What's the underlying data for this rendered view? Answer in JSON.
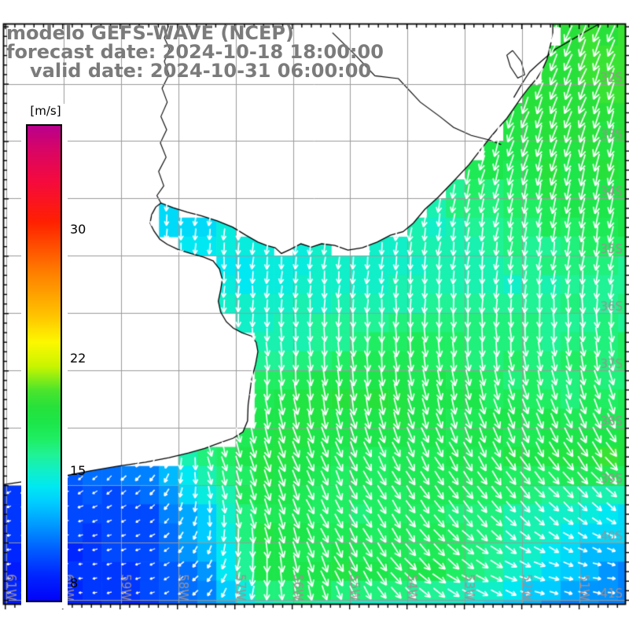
{
  "title": {
    "model": "modelo GEFS-WAVE (NCEP)",
    "forecast_date": "forecast date: 2024-10-18 18:00:00",
    "valid_date": "valid date: 2024-10-31 06:00:00",
    "color": "#7b7b7b"
  },
  "colorbar": {
    "unit": "[m/s]",
    "min": 0.4,
    "max": 30,
    "ticks": [
      {
        "label": "30",
        "value": 30
      },
      {
        "label": "22",
        "value": 22
      },
      {
        "label": "15",
        "value": 15
      },
      {
        "label": "8",
        "value": 8
      }
    ],
    "stops": [
      [
        0.4,
        "#0202f8"
      ],
      [
        2,
        "#0026ff"
      ],
      [
        3.5,
        "#005aff"
      ],
      [
        5,
        "#0095ff"
      ],
      [
        6.5,
        "#00ccff"
      ],
      [
        7.5,
        "#00e8f2"
      ],
      [
        8.5,
        "#10efc8"
      ],
      [
        9.5,
        "#20f296"
      ],
      [
        10.5,
        "#1fee62"
      ],
      [
        11.5,
        "#1ce64a"
      ],
      [
        12.5,
        "#27e13a"
      ],
      [
        13.5,
        "#4ae52c"
      ],
      [
        15,
        "#c8f400"
      ],
      [
        16.5,
        "#fcf800"
      ],
      [
        18,
        "#ffc800"
      ],
      [
        21,
        "#ff7a00"
      ],
      [
        24,
        "#ff2000"
      ],
      [
        26.5,
        "#f50a3c"
      ],
      [
        28.5,
        "#d80565"
      ],
      [
        30,
        "#b8008c"
      ]
    ]
  },
  "map": {
    "lon_left_w": 61.05,
    "lon_right_w": 50.21,
    "lat_top_s": 30.95,
    "lat_bottom_s": 41.07,
    "grid_color": "#9a9a9a",
    "border_color": "#000000",
    "label_color": "#a08f92",
    "minor_tick_step_deg": 0.1667,
    "lon_gridlines": [
      {
        "value": 61,
        "label": "61W"
      },
      {
        "value": 60,
        "label": "60W"
      },
      {
        "value": 59,
        "label": "59W"
      },
      {
        "value": 58,
        "label": "58W"
      },
      {
        "value": 57,
        "label": "57W"
      },
      {
        "value": 56,
        "label": "56W"
      },
      {
        "value": 55,
        "label": "55W"
      },
      {
        "value": 54,
        "label": "54W"
      },
      {
        "value": 53,
        "label": "53W"
      },
      {
        "value": 52,
        "label": "52W"
      },
      {
        "value": 51,
        "label": "51W"
      }
    ],
    "lat_gridlines": [
      {
        "value": 32,
        "label": "32S"
      },
      {
        "value": 33,
        "label": "33S"
      },
      {
        "value": 34,
        "label": "34S"
      },
      {
        "value": 35,
        "label": "35S"
      },
      {
        "value": 36,
        "label": "36S"
      },
      {
        "value": 37,
        "label": "37S"
      },
      {
        "value": 38,
        "label": "38S"
      },
      {
        "value": 39,
        "label": "39S"
      },
      {
        "value": 40,
        "label": "40S"
      },
      {
        "value": 41,
        "label": "41S"
      }
    ]
  },
  "field": {
    "units": "m/s",
    "arrow_color": "#ffffff",
    "cell_step_deg": 0.3333,
    "arrow_step_deg": 0.25,
    "lon_centers_w": [
      60.5,
      59.5,
      58.5,
      57.5,
      56.5,
      55.5,
      54.5,
      53.5,
      52.5,
      51.5,
      50.5
    ],
    "lat_centers_s": [
      31.5,
      32.5,
      33.5,
      34.5,
      35.5,
      36.5,
      37.5,
      38.5,
      39.5,
      40.5,
      41.2
    ],
    "speed": [
      [
        9,
        9,
        9,
        9,
        9,
        9.5,
        10,
        11,
        12,
        12.5,
        13
      ],
      [
        8.5,
        8.5,
        8.5,
        8.5,
        9,
        9,
        10,
        11,
        12,
        12.5,
        12.5
      ],
      [
        7.5,
        7.5,
        7.5,
        8,
        8,
        8.5,
        9,
        10,
        11,
        12,
        12
      ],
      [
        7,
        6.5,
        7,
        7.5,
        8,
        8,
        8.5,
        9,
        9.5,
        10.5,
        11
      ],
      [
        7,
        7,
        7.5,
        8,
        8,
        8.5,
        8.5,
        9,
        9,
        9,
        9.5
      ],
      [
        7,
        7,
        7.5,
        8,
        9,
        9.5,
        10.5,
        10.5,
        10,
        10,
        10
      ],
      [
        6,
        6.5,
        7,
        9,
        11,
        12,
        12,
        11.5,
        11,
        10.5,
        10.5
      ],
      [
        3,
        4,
        5.5,
        10,
        12,
        11.5,
        11,
        11,
        11.5,
        12,
        12.5
      ],
      [
        2.5,
        3,
        3,
        7,
        11.5,
        10.5,
        10.5,
        10.5,
        10,
        8.5,
        7.5
      ],
      [
        2,
        2.5,
        3,
        5,
        11.5,
        12,
        11.5,
        11,
        9.5,
        7,
        5
      ],
      [
        2,
        2,
        2.5,
        4.5,
        8.5,
        9,
        8.5,
        8.5,
        7,
        5,
        4.5
      ]
    ],
    "direction_toward_deg": [
      [
        200,
        200,
        200,
        200,
        200,
        200,
        200,
        200,
        200,
        200,
        202
      ],
      [
        195,
        195,
        195,
        195,
        195,
        195,
        196,
        198,
        200,
        200,
        200
      ],
      [
        190,
        190,
        190,
        190,
        190,
        190,
        191,
        193,
        195,
        195,
        195
      ],
      [
        185,
        185,
        185,
        186,
        187,
        188,
        188,
        189,
        190,
        190,
        190
      ],
      [
        180,
        180,
        181,
        182,
        183,
        184,
        185,
        185,
        185,
        185,
        185
      ],
      [
        180,
        180,
        179,
        178,
        178,
        178,
        178,
        178,
        176,
        175,
        174
      ],
      [
        200,
        190,
        182,
        176,
        174,
        172,
        170,
        168,
        166,
        163,
        160
      ],
      [
        230,
        220,
        202,
        165,
        160,
        158,
        155,
        152,
        150,
        147,
        144
      ],
      [
        255,
        248,
        238,
        175,
        160,
        155,
        150,
        145,
        138,
        132,
        126
      ],
      [
        262,
        258,
        252,
        215,
        178,
        158,
        145,
        130,
        118,
        108,
        100
      ],
      [
        265,
        262,
        256,
        225,
        185,
        160,
        145,
        128,
        112,
        102,
        96
      ]
    ]
  },
  "geometry": {
    "coastline_lonlat_w_s": [
      [
        51.47,
        30.95
      ],
      [
        51.47,
        31.16
      ],
      [
        51.52,
        31.36
      ],
      [
        51.57,
        31.57
      ],
      [
        51.65,
        31.75
      ],
      [
        51.75,
        31.91
      ],
      [
        51.89,
        32.07
      ],
      [
        52.02,
        32.24
      ],
      [
        52.15,
        32.43
      ],
      [
        52.27,
        32.6
      ],
      [
        52.41,
        32.76
      ],
      [
        52.53,
        32.9
      ],
      [
        52.72,
        33.14
      ],
      [
        52.93,
        33.41
      ],
      [
        53.19,
        33.69
      ],
      [
        53.47,
        33.98
      ],
      [
        53.7,
        34.19
      ],
      [
        53.9,
        34.43
      ],
      [
        54.08,
        34.58
      ],
      [
        54.3,
        34.64
      ],
      [
        54.53,
        34.76
      ],
      [
        54.79,
        34.86
      ],
      [
        55.04,
        34.9
      ],
      [
        55.27,
        34.82
      ],
      [
        55.5,
        34.79
      ],
      [
        55.68,
        34.85
      ],
      [
        55.86,
        34.79
      ],
      [
        56.05,
        34.89
      ],
      [
        56.2,
        34.96
      ],
      [
        56.31,
        34.86
      ],
      [
        56.46,
        34.82
      ],
      [
        56.61,
        34.76
      ],
      [
        56.82,
        34.64
      ],
      [
        57.05,
        34.5
      ],
      [
        57.32,
        34.39
      ],
      [
        57.6,
        34.3
      ],
      [
        57.84,
        34.24
      ],
      [
        58.09,
        34.16
      ],
      [
        58.3,
        34.08
      ],
      [
        58.39,
        34.15
      ],
      [
        58.46,
        34.28
      ],
      [
        58.49,
        34.43
      ],
      [
        58.42,
        34.57
      ],
      [
        58.32,
        34.71
      ],
      [
        58.19,
        34.8
      ],
      [
        58.0,
        34.89
      ],
      [
        57.78,
        34.96
      ],
      [
        57.56,
        35.02
      ],
      [
        57.39,
        35.09
      ],
      [
        57.28,
        35.23
      ],
      [
        57.23,
        35.41
      ],
      [
        57.26,
        35.6
      ],
      [
        57.3,
        35.79
      ],
      [
        57.26,
        35.98
      ],
      [
        57.16,
        36.15
      ],
      [
        57.04,
        36.26
      ],
      [
        56.89,
        36.34
      ],
      [
        56.72,
        36.4
      ],
      [
        56.64,
        36.51
      ],
      [
        56.61,
        36.67
      ],
      [
        56.65,
        36.89
      ],
      [
        56.72,
        37.16
      ],
      [
        56.78,
        37.6
      ],
      [
        56.79,
        37.88
      ],
      [
        56.87,
        38.07
      ],
      [
        57.04,
        38.18
      ],
      [
        57.27,
        38.26
      ],
      [
        57.54,
        38.36
      ],
      [
        57.82,
        38.44
      ],
      [
        58.16,
        38.52
      ],
      [
        58.57,
        38.6
      ],
      [
        59.05,
        38.67
      ],
      [
        59.53,
        38.75
      ],
      [
        60.04,
        38.85
      ],
      [
        60.56,
        38.92
      ],
      [
        61.05,
        38.99
      ]
    ],
    "uruguay_river_lonlat": [
      [
        58.17,
        30.99
      ],
      [
        58.24,
        31.2
      ],
      [
        58.15,
        31.39
      ],
      [
        58.24,
        31.61
      ],
      [
        58.16,
        31.84
      ],
      [
        58.28,
        32.08
      ],
      [
        58.19,
        32.32
      ],
      [
        58.3,
        32.57
      ],
      [
        58.2,
        32.8
      ],
      [
        58.31,
        33.03
      ],
      [
        58.21,
        33.28
      ],
      [
        58.34,
        33.53
      ],
      [
        58.25,
        33.78
      ],
      [
        58.37,
        33.95
      ],
      [
        58.3,
        34.08
      ]
    ],
    "rio_negro_lonlat": [
      [
        55.31,
        31.11
      ],
      [
        54.94,
        31.47
      ],
      [
        54.57,
        31.86
      ],
      [
        54.16,
        31.91
      ],
      [
        53.78,
        32.32
      ],
      [
        53.44,
        32.57
      ],
      [
        53.2,
        32.76
      ],
      [
        52.89,
        32.9
      ],
      [
        52.58,
        32.98
      ],
      [
        52.37,
        33.06
      ]
    ],
    "patos_shore_lonlat": [
      [
        50.65,
        30.95
      ],
      [
        50.9,
        31.09
      ],
      [
        51.17,
        31.25
      ],
      [
        51.43,
        31.4
      ],
      [
        51.58,
        31.53
      ],
      [
        51.73,
        31.66
      ],
      [
        51.87,
        31.79
      ],
      [
        51.95,
        31.91
      ],
      [
        52.05,
        32.07
      ],
      [
        52.15,
        32.24
      ]
    ],
    "lagoa_mirim_lonlat": [
      [
        52.17,
        31.42
      ],
      [
        52.02,
        31.61
      ],
      [
        51.96,
        31.84
      ],
      [
        52.08,
        31.9
      ],
      [
        52.21,
        31.7
      ],
      [
        52.27,
        31.5
      ],
      [
        52.17,
        31.42
      ]
    ]
  }
}
